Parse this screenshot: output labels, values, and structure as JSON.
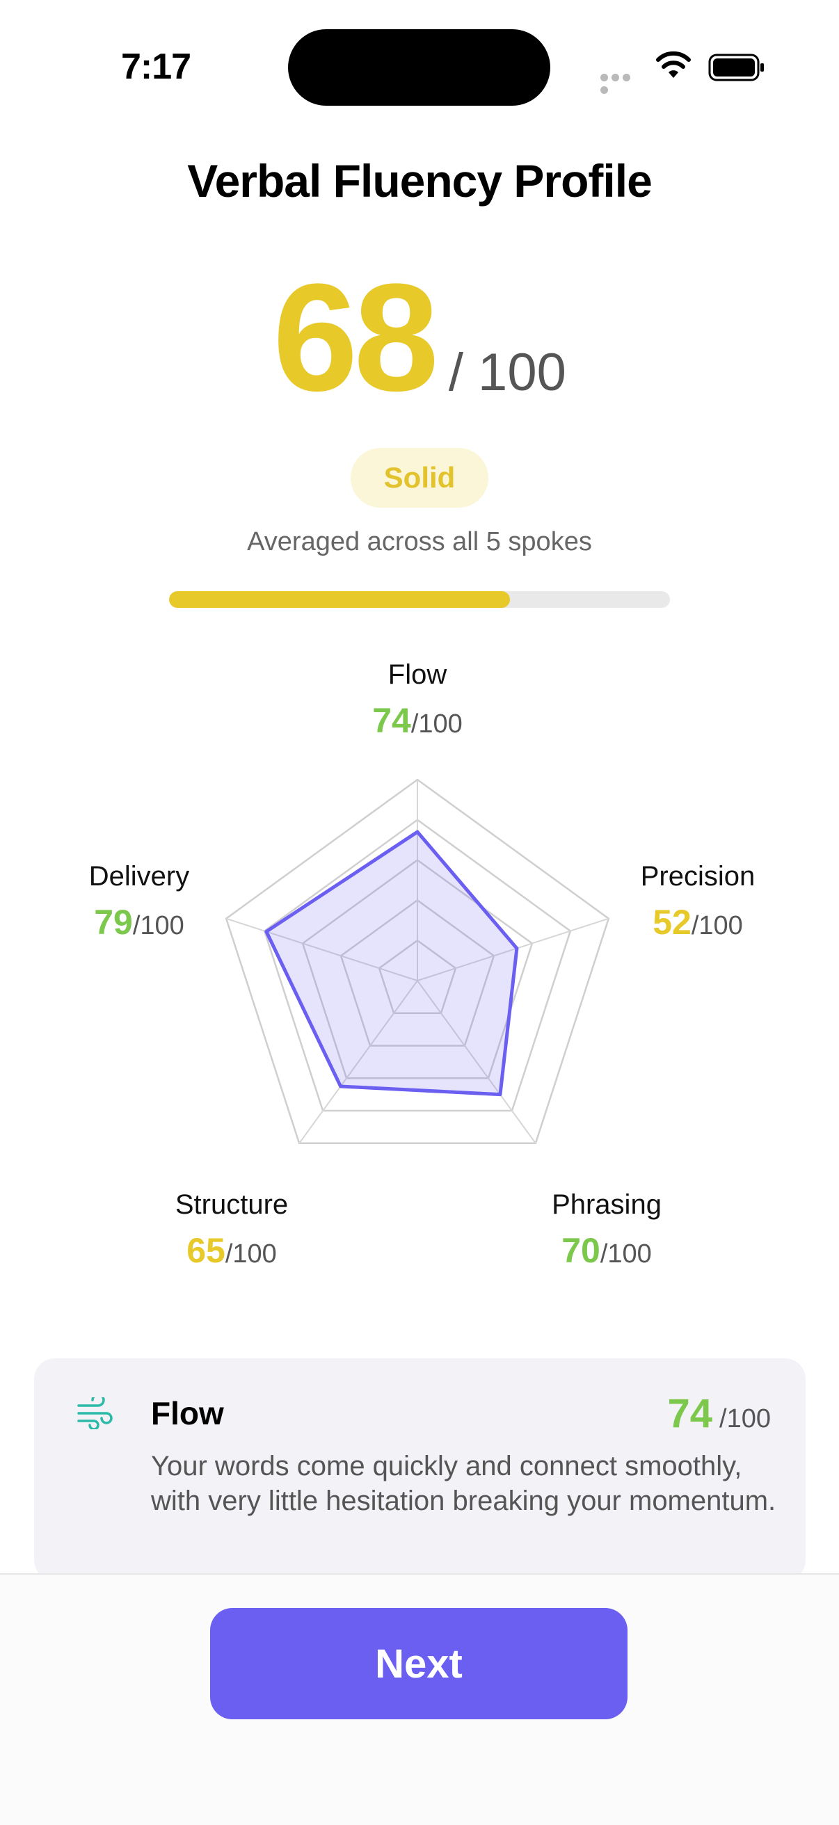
{
  "status_bar": {
    "time": "7:17"
  },
  "title": "Verbal Fluency Profile",
  "overall": {
    "score": "68",
    "out_of": "/ 100",
    "badge": "Solid",
    "subtitle": "Averaged across all 5 spokes",
    "progress_fraction": 0.68
  },
  "colors": {
    "yellow": "#e8c92a",
    "green": "#7cc84d",
    "purple": "#6b5ff2"
  },
  "chart_data": {
    "type": "radar",
    "max": 100,
    "axes": [
      {
        "name": "Flow",
        "value": 74,
        "value_label": "74",
        "max_label": "/100",
        "color": "#7cc84d"
      },
      {
        "name": "Precision",
        "value": 52,
        "value_label": "52",
        "max_label": "/100",
        "color": "#e8c92a"
      },
      {
        "name": "Phrasing",
        "value": 70,
        "value_label": "70",
        "max_label": "/100",
        "color": "#7cc84d"
      },
      {
        "name": "Structure",
        "value": 65,
        "value_label": "65",
        "max_label": "/100",
        "color": "#e8c92a"
      },
      {
        "name": "Delivery",
        "value": 79,
        "value_label": "79",
        "max_label": "/100",
        "color": "#7cc84d"
      }
    ],
    "grid_levels": 5
  },
  "detail_card": {
    "icon": "wind-icon",
    "title": "Flow",
    "score": "74",
    "max": "/100",
    "description": "Your words come quickly and connect smoothly, with very little hesitation breaking your momentum."
  },
  "footer": {
    "next_label": "Next"
  }
}
